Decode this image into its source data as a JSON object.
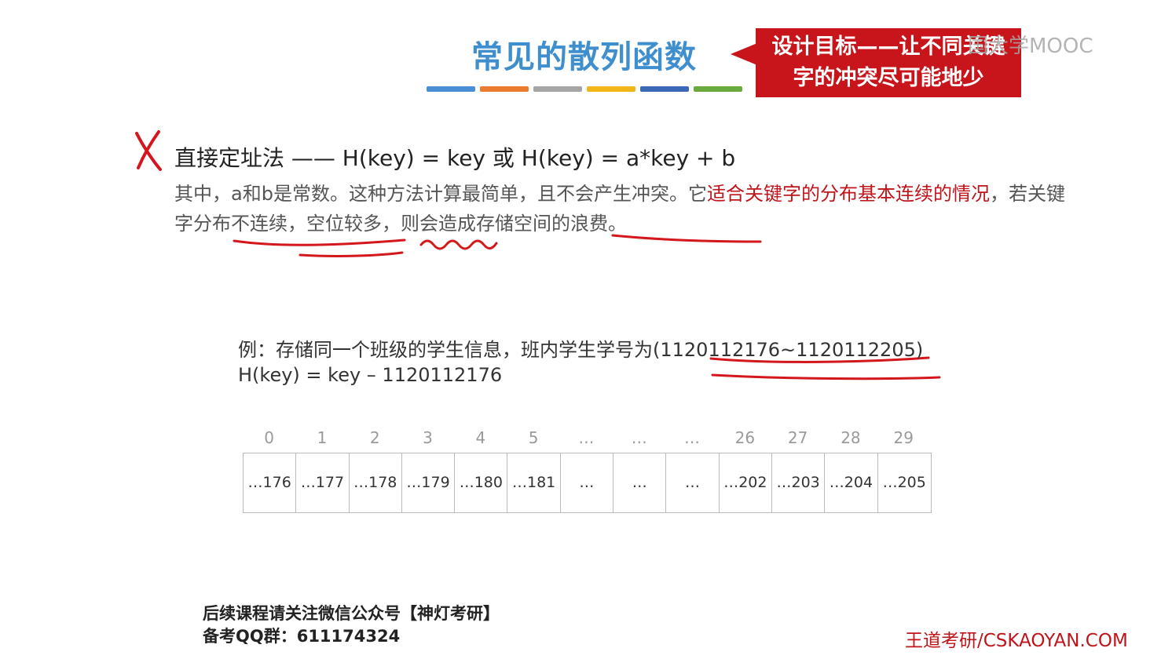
{
  "slide": {
    "title": "常见的散列函数",
    "accent_colors": [
      "#4a8fd6",
      "#ea7a2e",
      "#a5a5a5",
      "#f2b619",
      "#3b68b7",
      "#6aaa3c"
    ]
  },
  "callout": {
    "line1": "设计目标——让不同关键",
    "line2": "字的冲突尽可能地少",
    "color": "#c8151b"
  },
  "watermark": {
    "mooc": "国大学MOOC",
    "site": "王道考研/CSKAOYAN.COM"
  },
  "method": {
    "icon": "cross-icon",
    "title": "直接定址法 —— H(key) = key 或 H(key) = a*key + b",
    "desc_part1": "其中，a和b是常数。这种方法计算最简单，且不会产生冲突。它",
    "desc_red": "适合关键字的分布基本连续的情况",
    "desc_part2": "，若关键字分布不连续，空位较多，则会造成存储空间的浪费。"
  },
  "example": {
    "line1": "例：存储同一个班级的学生信息，班内学生学号为(1120112176~1120112205)",
    "line2": "H(key) = key – 1120112176"
  },
  "table": {
    "indices": [
      "0",
      "1",
      "2",
      "3",
      "4",
      "5",
      "…",
      "…",
      "…",
      "26",
      "27",
      "28",
      "29"
    ],
    "values": [
      "…176",
      "…177",
      "…178",
      "…179",
      "…180",
      "…181",
      "…",
      "…",
      "…",
      "…202",
      "…203",
      "…204",
      "…205"
    ]
  },
  "footer": {
    "line1": "后续课程请关注微信公众号【神灯考研】",
    "line2": "备考QQ群：611174324"
  }
}
